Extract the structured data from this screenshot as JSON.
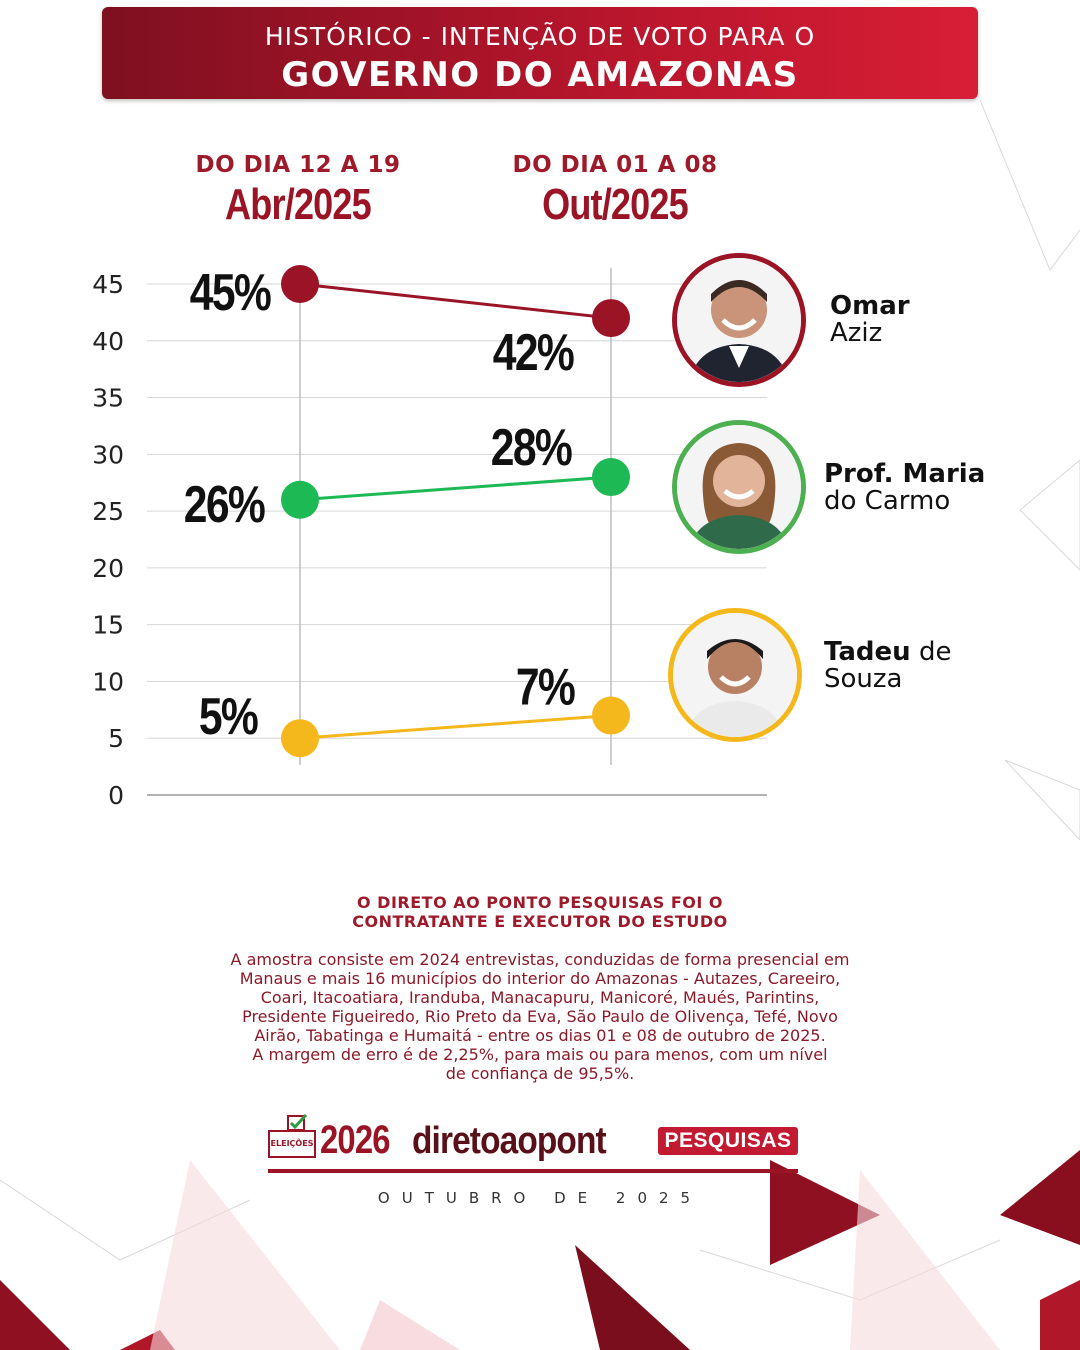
{
  "header": {
    "line1": "HISTÓRICO - INTENÇÃO DE VOTO PARA O",
    "line2": "GOVERNO DO AMAZONAS"
  },
  "periods": [
    {
      "small": "DO DIA 12 A 19",
      "big": "Abr/2025"
    },
    {
      "small": "DO DIA 01 A 08",
      "big": "Out/2025"
    }
  ],
  "chart_data": {
    "type": "line",
    "categories": [
      "Abr/2025",
      "Out/2025"
    ],
    "ylim": [
      0,
      45
    ],
    "yticks": [
      0,
      5,
      10,
      15,
      20,
      25,
      30,
      35,
      40,
      45
    ],
    "grid": true,
    "series": [
      {
        "name": "Omar Aziz",
        "color": "#9b1426",
        "values": [
          45,
          42
        ],
        "labels": [
          "45%",
          "42%"
        ]
      },
      {
        "name": "Prof. Maria do Carmo",
        "color": "#1db954",
        "values": [
          26,
          28
        ],
        "labels": [
          "26%",
          "28%"
        ]
      },
      {
        "name": "Tadeu de Souza",
        "color": "#f5b81c",
        "values": [
          5,
          7
        ],
        "labels": [
          "5%",
          "7%"
        ]
      }
    ]
  },
  "candidates": [
    {
      "name_bold": "Omar",
      "name_rest": "Aziz",
      "color": "#9b1426"
    },
    {
      "name_bold": "Prof. Maria",
      "name_rest": "do Carmo",
      "color": "#4caf50"
    },
    {
      "name_bold": "Tadeu",
      "name_rest_inline": "de",
      "name_rest": "Souza",
      "color": "#f5b81c"
    }
  ],
  "footer": {
    "title_lines": [
      "O DIRETO AO PONTO PESQUISAS FOI O",
      "CONTRATANTE E EXECUTOR DO ESTUDO"
    ],
    "body_lines": [
      "A amostra consiste em 2024 entrevistas, conduzidas de forma presencial em",
      "Manaus e mais 16 municípios do interior do Amazonas - Autazes, Careeiro,",
      "Coari, Itacoatiara, Iranduba, Manacapuru, Manicoré, Maués, Parintins,",
      "Presidente Figueiredo, Rio Preto da Eva, São Paulo de Olivença, Tefé, Novo",
      "Airão, Tabatinga e Humaitá - entre os dias 01 e 08 de outubro de 2025.",
      "A margem de erro é de 2,25%, para mais ou para menos, com um nível",
      "de confiança de 95,5%."
    ]
  },
  "logo": {
    "box_label": "ELEIÇÕES",
    "year": "2026",
    "brand": "diretoaopont",
    "tag": "PESQUISAS"
  },
  "date_line": "OUTUBRO DE 2025"
}
